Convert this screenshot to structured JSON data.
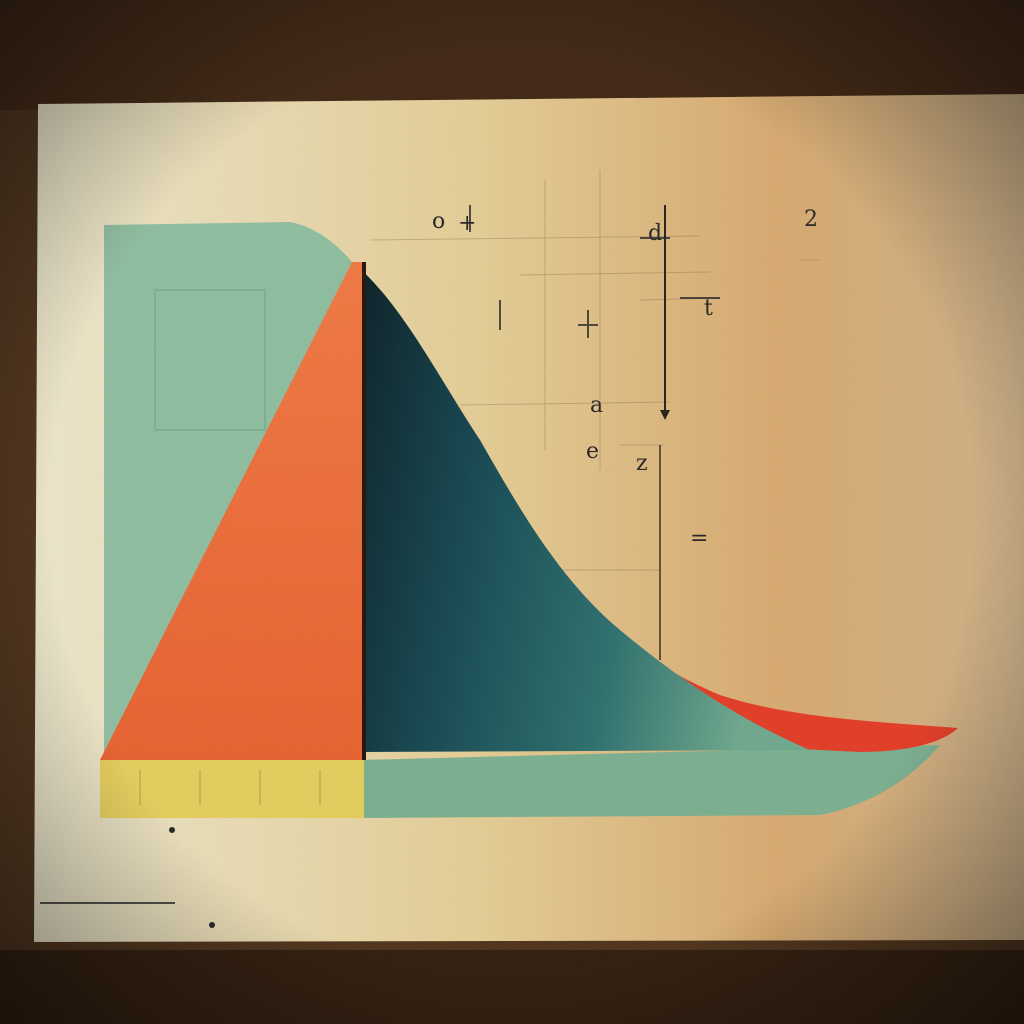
{
  "artwork": {
    "subject": "paper-collage of a skewed bell-shaped distribution curve",
    "marks": [
      {
        "id": "m1",
        "text": "o",
        "approx": true
      },
      {
        "id": "m2",
        "text": "+",
        "approx": true
      },
      {
        "id": "m3",
        "text": "d",
        "approx": true
      },
      {
        "id": "m4",
        "text": "a",
        "approx": true
      },
      {
        "id": "m5",
        "text": "e",
        "approx": true
      },
      {
        "id": "m6",
        "text": "z",
        "approx": true
      },
      {
        "id": "m7",
        "text": "=",
        "approx": true
      },
      {
        "id": "m8",
        "text": "t",
        "approx": true
      },
      {
        "id": "m9",
        "text": "2",
        "approx": true
      }
    ]
  },
  "palette": {
    "backdrop": "#3a2414",
    "paper_light": "#ece6c8",
    "paper_warm": "#d6a86e",
    "mint": "#8fbfa2",
    "orange": "#e8673a",
    "teal_dark": "#123a44",
    "teal_mid": "#2c6e72",
    "red": "#e0402a",
    "yellow": "#e6cf5e",
    "ink": "#2a2a2a"
  }
}
